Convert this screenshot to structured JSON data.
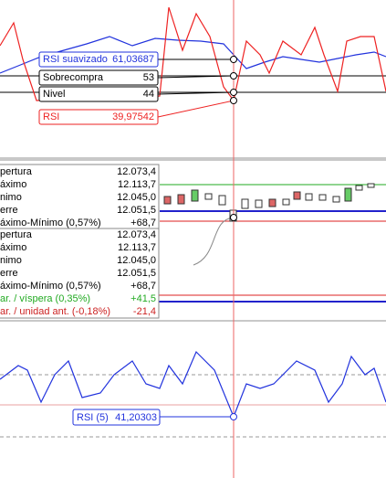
{
  "panel_rsi": {
    "labels": [
      {
        "name": "RSI suavizado",
        "value": "61,03687"
      },
      {
        "name": "Sobrecompra",
        "value": "53"
      },
      {
        "name": "Nivel",
        "value": "44"
      },
      {
        "name": "RSI",
        "value": "39,97542"
      }
    ]
  },
  "panel_price": {
    "tooltip_1": [
      {
        "name": "pertura",
        "value": "12.073,4"
      },
      {
        "name": "áximo",
        "value": "12.113,7"
      },
      {
        "name": "nimo",
        "value": "12.045,0"
      },
      {
        "name": "erre",
        "value": "12.051,5"
      },
      {
        "name": "áximo-Mínimo (0,57%)",
        "value": "+68,7"
      }
    ],
    "tooltip_2": [
      {
        "name": "pertura",
        "value": "12.073,4"
      },
      {
        "name": "áximo",
        "value": "12.113,7"
      },
      {
        "name": "nimo",
        "value": "12.045,0"
      },
      {
        "name": "erre",
        "value": "12.051,5"
      },
      {
        "name": "áximo-Mínimo (0,57%)",
        "value": "+68,7"
      },
      {
        "name": "ar. / víspera (0,35%)",
        "value": "+41,5"
      },
      {
        "name": "ar. / unidad ant. (-0,18%)",
        "value": "-21,4"
      }
    ]
  },
  "panel_rsi5": {
    "label": {
      "name": "RSI (5)",
      "value": "41,20303"
    }
  }
}
